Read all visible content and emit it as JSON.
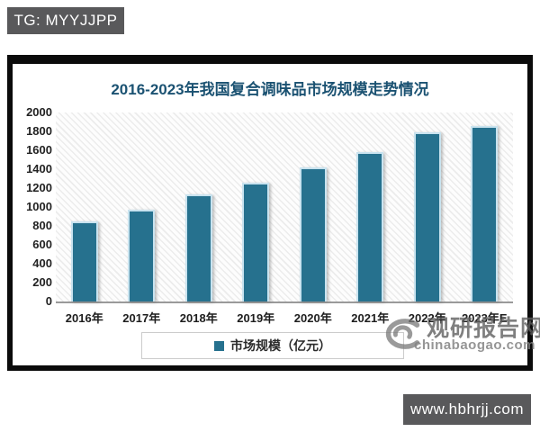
{
  "overlay": {
    "tg_badge": "TG: MYYJJPP",
    "site_badge": "www.hbhrjj.com"
  },
  "chart": {
    "title": "2016-2023年我国复合调味品市场规模走势情况",
    "legend_label": "市场规模（亿元）",
    "watermark": {
      "name": "观研报告网",
      "domain": "chinabaogao.com"
    },
    "colors": {
      "bar": "#26718e",
      "bar_edge": "#c9e3ef",
      "title": "#1b5272",
      "badge_bg": "#59595b",
      "frame": "#0b0b0b",
      "axis_line": "#9a9a9a"
    }
  },
  "chart_data": {
    "type": "bar",
    "title": "2016-2023年我国复合调味品市场规模走势情况",
    "categories": [
      "2016年",
      "2017年",
      "2018年",
      "2019年",
      "2020年",
      "2021年",
      "2022年",
      "2023年E"
    ],
    "series": [
      {
        "name": "市场规模（亿元）",
        "values": [
          850,
          975,
          1130,
          1255,
          1415,
          1585,
          1790,
          1860
        ]
      }
    ],
    "xlabel": "",
    "ylabel": "",
    "ylim": [
      0,
      2000
    ],
    "ytick_step": 200,
    "grid": false,
    "legend_position": "bottom"
  }
}
